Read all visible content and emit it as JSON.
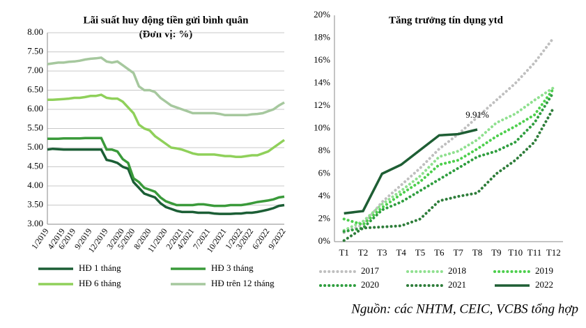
{
  "chart_data": [
    {
      "type": "line",
      "title": "Lãi suất huy động tiền gửi bình quân",
      "subtitle": "(Đơn vị: %)",
      "categories": [
        "1/2019",
        null,
        null,
        "4/2019",
        null,
        "6/2019",
        null,
        null,
        "9/2019",
        null,
        null,
        "12/2019",
        null,
        null,
        "3/2020",
        null,
        "5/2020",
        null,
        null,
        "8/2020",
        null,
        null,
        "11/2020",
        null,
        null,
        "2/2021",
        null,
        "4/2021",
        null,
        null,
        "7/2021",
        null,
        null,
        "10/2021",
        null,
        null,
        "1/2022",
        null,
        "3/2022",
        null,
        null,
        "6/2022",
        null,
        null,
        "9/2022"
      ],
      "ylim": [
        3,
        8
      ],
      "yticks": [
        {
          "value": 3,
          "label": "3.00"
        },
        {
          "value": 3.5,
          "label": "3.50"
        },
        {
          "value": 4,
          "label": "4.00"
        },
        {
          "value": 4.5,
          "label": "4.50"
        },
        {
          "value": 5,
          "label": "5.00"
        },
        {
          "value": 5.5,
          "label": "5.50"
        },
        {
          "value": 6,
          "label": "6.00"
        },
        {
          "value": 6.5,
          "label": "6.50"
        },
        {
          "value": 7,
          "label": "7.00"
        },
        {
          "value": 7.5,
          "label": "7.50"
        },
        {
          "value": 8,
          "label": "8.00"
        }
      ],
      "grid": true,
      "series": [
        {
          "name": "HĐ 1 tháng",
          "color": "#1b5e35",
          "style": "solid",
          "values": [
            4.95,
            4.97,
            4.96,
            4.95,
            4.95,
            4.95,
            4.95,
            4.95,
            4.95,
            4.95,
            4.95,
            4.68,
            4.65,
            4.6,
            4.5,
            4.45,
            4.1,
            3.95,
            3.8,
            3.75,
            3.7,
            3.55,
            3.45,
            3.4,
            3.35,
            3.32,
            3.32,
            3.32,
            3.3,
            3.3,
            3.3,
            3.28,
            3.27,
            3.27,
            3.27,
            3.28,
            3.28,
            3.3,
            3.3,
            3.32,
            3.35,
            3.38,
            3.42,
            3.48,
            3.5
          ]
        },
        {
          "name": "HĐ 3 tháng",
          "color": "#3a9a3a",
          "style": "solid",
          "values": [
            5.23,
            5.23,
            5.23,
            5.24,
            5.24,
            5.24,
            5.24,
            5.25,
            5.25,
            5.25,
            5.25,
            4.95,
            4.95,
            4.9,
            4.7,
            4.6,
            4.2,
            4.1,
            3.95,
            3.9,
            3.85,
            3.7,
            3.6,
            3.55,
            3.5,
            3.5,
            3.5,
            3.5,
            3.52,
            3.52,
            3.5,
            3.48,
            3.48,
            3.48,
            3.5,
            3.5,
            3.5,
            3.52,
            3.55,
            3.58,
            3.6,
            3.62,
            3.65,
            3.7,
            3.72
          ]
        },
        {
          "name": "HĐ 6 tháng",
          "color": "#8fd05a",
          "style": "solid",
          "values": [
            6.25,
            6.25,
            6.26,
            6.27,
            6.28,
            6.3,
            6.3,
            6.32,
            6.35,
            6.35,
            6.38,
            6.3,
            6.28,
            6.28,
            6.2,
            6.05,
            5.9,
            5.6,
            5.5,
            5.45,
            5.3,
            5.2,
            5.1,
            5.0,
            4.98,
            4.95,
            4.9,
            4.85,
            4.82,
            4.82,
            4.82,
            4.82,
            4.8,
            4.78,
            4.78,
            4.76,
            4.76,
            4.78,
            4.8,
            4.8,
            4.85,
            4.9,
            5.0,
            5.1,
            5.2
          ]
        },
        {
          "name": "HĐ trên 12 tháng",
          "color": "#a6c89e",
          "style": "solid",
          "values": [
            7.18,
            7.2,
            7.22,
            7.22,
            7.24,
            7.25,
            7.27,
            7.3,
            7.32,
            7.33,
            7.35,
            7.25,
            7.22,
            7.25,
            7.15,
            7.05,
            6.95,
            6.6,
            6.5,
            6.5,
            6.45,
            6.3,
            6.2,
            6.1,
            6.05,
            6.0,
            5.95,
            5.9,
            5.9,
            5.9,
            5.9,
            5.9,
            5.88,
            5.85,
            5.85,
            5.85,
            5.85,
            5.85,
            5.87,
            5.88,
            5.9,
            5.95,
            6.0,
            6.1,
            6.18
          ]
        }
      ]
    },
    {
      "type": "line",
      "title": "Tăng trưởng tín dụng ytd",
      "categories": [
        "T1",
        "T2",
        "T3",
        "T4",
        "T5",
        "T6",
        "T7",
        "T8",
        "T9",
        "T10",
        "T11",
        "T12"
      ],
      "ylim": [
        0,
        20
      ],
      "yticks": [
        {
          "value": 0,
          "label": "0%"
        },
        {
          "value": 2,
          "label": "2%"
        },
        {
          "value": 4,
          "label": "4%"
        },
        {
          "value": 6,
          "label": "6%"
        },
        {
          "value": 8,
          "label": "8%"
        },
        {
          "value": 10,
          "label": "10%"
        },
        {
          "value": 12,
          "label": "12%"
        },
        {
          "value": 14,
          "label": "14%"
        },
        {
          "value": 16,
          "label": "16%"
        },
        {
          "value": 18,
          "label": "18%"
        },
        {
          "value": 20,
          "label": "20%"
        }
      ],
      "grid": false,
      "series": [
        {
          "name": "2017",
          "color": "#bfbfbf",
          "style": "dotted",
          "values": [
            0.8,
            1.5,
            3.5,
            5.0,
            6.5,
            8.2,
            9.5,
            11,
            12.5,
            14,
            15.8,
            18
          ]
        },
        {
          "name": "2018",
          "color": "#8fe08f",
          "style": "dotted",
          "values": [
            1.0,
            1.8,
            3.3,
            4.5,
            5.8,
            7.5,
            8.0,
            9.0,
            10.5,
            11.3,
            12.5,
            13.6
          ]
        },
        {
          "name": "2019",
          "color": "#4dcf4d",
          "style": "dotted",
          "values": [
            2.0,
            1.5,
            3.0,
            4.2,
            5.3,
            6.8,
            7.2,
            8.2,
            9.3,
            10.2,
            11.2,
            13.5
          ]
        },
        {
          "name": "2020",
          "color": "#2f9e3f",
          "style": "dotted",
          "values": [
            0.9,
            1.2,
            2.8,
            3.5,
            4.5,
            5.5,
            6.5,
            7.5,
            8.0,
            8.8,
            10.5,
            13.2
          ]
        },
        {
          "name": "2021",
          "color": "#2e7d3a",
          "style": "dotted",
          "values": [
            0.1,
            1.2,
            1.3,
            1.4,
            2.0,
            3.6,
            4.0,
            4.3,
            6.0,
            7.2,
            8.8,
            11.8
          ]
        },
        {
          "name": "2022",
          "color": "#1e5e34",
          "style": "solid",
          "values": [
            2.5,
            2.7,
            6.0,
            6.8,
            8.1,
            9.4,
            9.5,
            9.91,
            null,
            null,
            null,
            null
          ],
          "value_labels": [
            null,
            null,
            null,
            null,
            null,
            null,
            null,
            "9.91%",
            null,
            null,
            null,
            null
          ]
        }
      ]
    }
  ],
  "source": "Nguồn: các NHTM, CEIC, VCBS tổng hợp"
}
